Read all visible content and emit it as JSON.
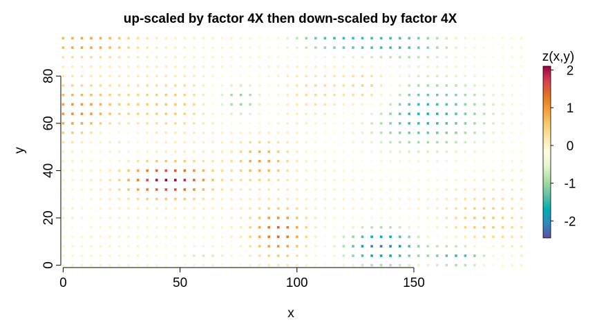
{
  "chart_data": {
    "type": "heatmap",
    "title": "up-scaled by factor 4X then down-scaled by factor 4X",
    "xlabel": "x",
    "ylabel": "y",
    "xlim": [
      -1,
      197
    ],
    "ylim": [
      -1,
      97
    ],
    "x_ticks": [
      0,
      50,
      100,
      150
    ],
    "y_ticks": [
      0,
      20,
      40,
      60,
      80
    ],
    "grid": {
      "x_start": 0,
      "x_step": 4,
      "nx": 50,
      "y_start": 0,
      "y_step": 4,
      "ny": 25
    },
    "legend": {
      "title": "z(x,y)",
      "placement": "right",
      "range": [
        -2.45,
        2.1
      ],
      "ticks": [
        -2,
        -1,
        0,
        1,
        2
      ],
      "tick_labels": [
        "-2",
        "-1",
        "0",
        "1",
        "2"
      ],
      "colormap": [
        "#5E4FA2",
        "#3288BD",
        "#00AEB0",
        "#66C2A5",
        "#ABDDA4",
        "#E6F5D0",
        "#FFFDE0",
        "#FEE8A8",
        "#F9C86A",
        "#F39C3A",
        "#E07320",
        "#D53E4F",
        "#9E0142"
      ]
    },
    "field_features": [
      {
        "x": 45,
        "y": 36,
        "amp": 2.2,
        "sx": 12,
        "sy": 5
      },
      {
        "x": 92,
        "y": 14,
        "amp": 1.5,
        "sx": 8,
        "sy": 7
      },
      {
        "x": 136,
        "y": 8,
        "amp": -2.2,
        "sx": 12,
        "sy": 6
      },
      {
        "x": 170,
        "y": 4,
        "amp": -1.6,
        "sx": 10,
        "sy": 4
      },
      {
        "x": 155,
        "y": 64,
        "amp": -1.6,
        "sx": 22,
        "sy": 12
      },
      {
        "x": 140,
        "y": 94,
        "amp": -1.5,
        "sx": 20,
        "sy": 5
      },
      {
        "x": 75,
        "y": 70,
        "amp": -1.2,
        "sx": 8,
        "sy": 6
      },
      {
        "x": 5,
        "y": 65,
        "amp": 1.1,
        "sx": 12,
        "sy": 8
      },
      {
        "x": 10,
        "y": 94,
        "amp": 1.0,
        "sx": 15,
        "sy": 4
      },
      {
        "x": 132,
        "y": 74,
        "amp": 1.0,
        "sx": 8,
        "sy": 7
      },
      {
        "x": 85,
        "y": 44,
        "amp": 1.0,
        "sx": 8,
        "sy": 6
      },
      {
        "x": 110,
        "y": 96,
        "amp": -0.9,
        "sx": 12,
        "sy": 4
      },
      {
        "x": 45,
        "y": 68,
        "amp": 0.6,
        "sx": 15,
        "sy": 8
      },
      {
        "x": 22,
        "y": 52,
        "amp": -0.7,
        "sx": 8,
        "sy": 5
      },
      {
        "x": 180,
        "y": 18,
        "amp": 0.6,
        "sx": 12,
        "sy": 10
      },
      {
        "x": 60,
        "y": 4,
        "amp": -0.7,
        "sx": 10,
        "sy": 4
      },
      {
        "x": 2,
        "y": 22,
        "amp": -0.6,
        "sx": 6,
        "sy": 5
      },
      {
        "x": 110,
        "y": 72,
        "amp": 0.5,
        "sx": 10,
        "sy": 8
      }
    ]
  }
}
